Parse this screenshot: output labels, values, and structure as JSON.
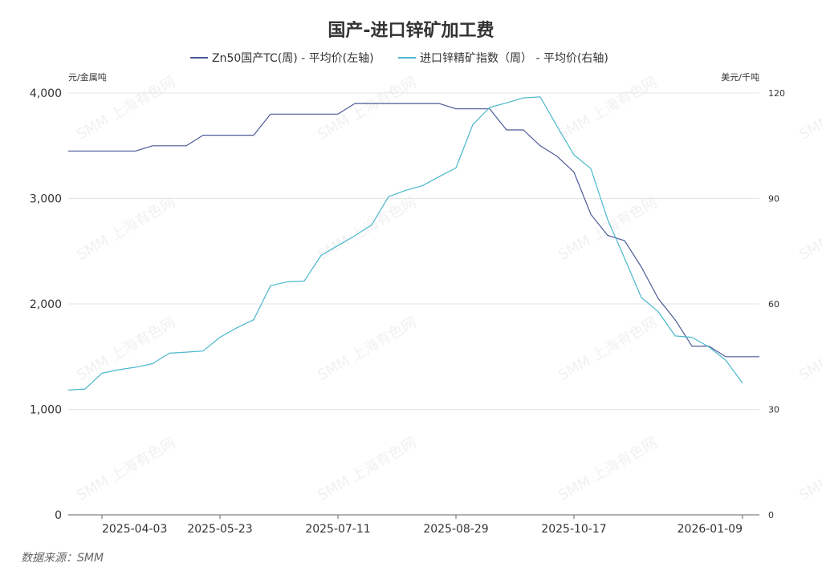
{
  "chart_data": {
    "type": "line",
    "title": "国产-进口锌矿加工费",
    "y_left_unit": "元/金属吨",
    "y_right_unit": "美元/千吨",
    "ylim_left": [
      0,
      4000
    ],
    "yticks_left": [
      "0",
      "1,000",
      "2,000",
      "3,000",
      "4,000"
    ],
    "ylim_right": [
      0,
      120
    ],
    "yticks_right": [
      "0",
      "30",
      "60",
      "90",
      "120"
    ],
    "x_tick_labels": [
      "2025-04-03",
      "2025-05-23",
      "2025-07-11",
      "2025-08-29",
      "2025-10-17",
      "2026-01-09"
    ],
    "x_tick_positions": [
      2,
      9,
      16,
      23,
      30,
      40
    ],
    "grid": true,
    "legend_position": "top",
    "series": [
      {
        "name": "Zn50国产TC(周) - 平均价(左轴)",
        "axis": "left",
        "color": "#4b5a96",
        "values": [
          3450,
          3450,
          3450,
          3450,
          3450,
          3500,
          3500,
          3500,
          3600,
          3600,
          3600,
          3600,
          3800,
          3800,
          3800,
          3800,
          3800,
          3900,
          3900,
          3900,
          3900,
          3900,
          3900,
          3850,
          3850,
          3850,
          3650,
          3650,
          3500,
          3400,
          3250,
          2850,
          2650,
          2600,
          2350,
          2050,
          1850,
          1600,
          1600,
          1500,
          1500,
          1500
        ]
      },
      {
        "name": "进口锌精矿指数（周） - 平均价(右轴)",
        "axis": "right",
        "color": "#4ab8cc",
        "values": [
          35.5,
          35.8,
          40.3,
          41.3,
          42.0,
          43.0,
          46.0,
          46.3,
          46.6,
          50.5,
          53.2,
          55.5,
          65.2,
          66.3,
          66.5,
          73.8,
          76.6,
          79.4,
          82.5,
          90.5,
          92.3,
          93.6,
          96.2,
          98.7,
          111.0,
          115.9,
          117.2,
          118.6,
          118.9,
          110.5,
          102.4,
          98.5,
          84.0,
          73.0,
          61.8,
          57.8,
          50.9,
          50.5,
          47.8,
          44.0,
          37.5
        ]
      }
    ]
  },
  "watermark": "SMM 上海有色网",
  "source": "数据来源：SMM"
}
